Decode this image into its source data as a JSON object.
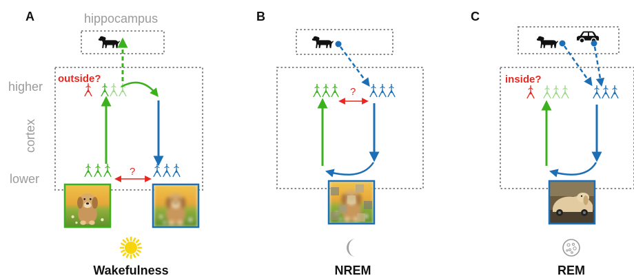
{
  "panels": [
    {
      "letter": "A",
      "state": "Wakefulness",
      "question": "outside?",
      "state_icon": "sun-icon"
    },
    {
      "letter": "B",
      "state": "NREM",
      "question": "",
      "state_icon": "moon-icon"
    },
    {
      "letter": "C",
      "state": "REM",
      "question": "inside?",
      "state_icon": "dream-bubble-icon"
    }
  ],
  "labels": {
    "hippocampus": "hippocampus",
    "higher": "higher",
    "cortex": "cortex",
    "lower": "lower",
    "question_mark": "?"
  },
  "colors": {
    "green": "#3bb11d",
    "light_green": "#9fd889",
    "blue": "#1c6fb5",
    "red": "#e8271f",
    "gray": "#8a8a8a",
    "sun": "#f6d40e"
  },
  "images": {
    "panel_a_left": "puppy-photo",
    "panel_a_right": "blurred-puppy-photo",
    "panel_b": "scrambled-puppy-photo",
    "panel_c": "dog-car-hybrid-photo"
  }
}
